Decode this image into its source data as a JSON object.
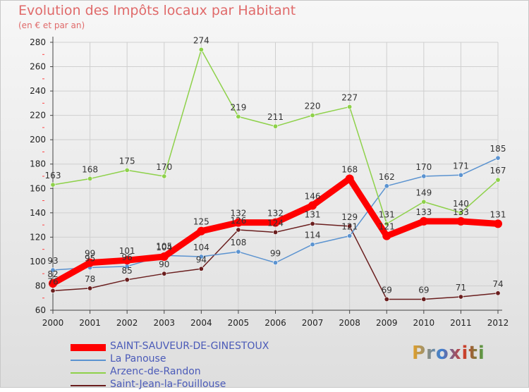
{
  "chart_data": {
    "type": "line",
    "title": "Evolution des Impôts locaux par Habitant",
    "subtitle": "(en € et par an)",
    "xlabel": "",
    "ylabel": "",
    "categories": [
      "2000",
      "2001",
      "2002",
      "2003",
      "2004",
      "2005",
      "2006",
      "2007",
      "2008",
      "2009",
      "2010",
      "2011",
      "2012"
    ],
    "ylim": [
      60,
      280
    ],
    "yticks": [
      60,
      80,
      100,
      120,
      140,
      160,
      180,
      200,
      220,
      240,
      260,
      280
    ],
    "grid": true,
    "legend_position": "bottom-left",
    "series": [
      {
        "name": "Saint-Jean-la-Fouillouse",
        "color": "#6a1e1e",
        "thick": false,
        "values": [
          76,
          78,
          85,
          90,
          94,
          126,
          124,
          131,
          129,
          69,
          69,
          71,
          74
        ]
      },
      {
        "name": "La Panouse",
        "color": "#5b93d0",
        "thick": false,
        "values": [
          93,
          95,
          96,
          105,
          104,
          108,
          99,
          114,
          121,
          162,
          170,
          171,
          185
        ]
      },
      {
        "name": "Arzenc-de-Randon",
        "color": "#8ed14a",
        "thick": false,
        "values": [
          163,
          168,
          175,
          170,
          274,
          219,
          211,
          220,
          227,
          131,
          149,
          140,
          167
        ]
      },
      {
        "name": "SAINT-SAUVEUR-DE-GINESTOUX",
        "color": "#ff0000",
        "thick": true,
        "values": [
          82,
          99,
          101,
          104,
          125,
          132,
          132,
          146,
          168,
          121,
          133,
          133,
          131
        ]
      }
    ]
  },
  "legend": {
    "items": [
      {
        "label": "SAINT-SAUVEUR-DE-GINESTOUX",
        "color": "#ff0000"
      },
      {
        "label": "La Panouse",
        "color": "#5b93d0"
      },
      {
        "label": "Arzenc-de-Randon",
        "color": "#8ed14a"
      },
      {
        "label": "Saint-Jean-la-Fouillouse",
        "color": "#6a1e1e"
      }
    ]
  },
  "brand": {
    "text": "Proxiti"
  }
}
